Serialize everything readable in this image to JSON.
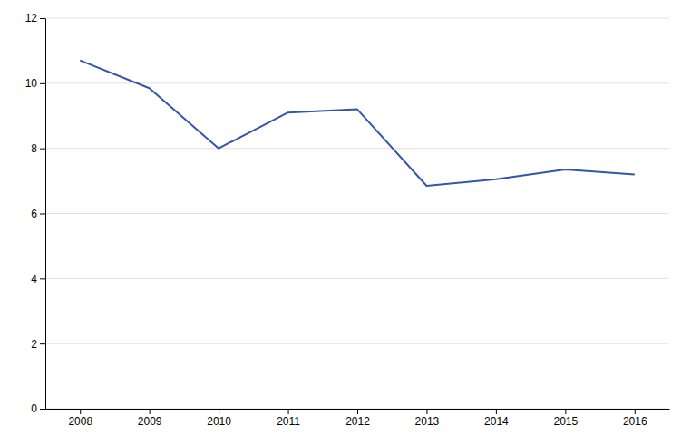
{
  "chart_data": {
    "type": "line",
    "x": [
      2008,
      2009,
      2010,
      2011,
      2012,
      2013,
      2014,
      2015,
      2016
    ],
    "values": [
      10.7,
      9.85,
      8.0,
      9.1,
      9.2,
      6.85,
      7.05,
      7.35,
      7.2
    ],
    "color": "#3355aa",
    "xlim": [
      2007.5,
      2016.5
    ],
    "ylim": [
      0,
      12
    ],
    "xticks": [
      2008,
      2009,
      2010,
      2011,
      2012,
      2013,
      2014,
      2015,
      2016
    ],
    "yticks": [
      0,
      2,
      4,
      6,
      8,
      10,
      12
    ],
    "grid": true
  }
}
